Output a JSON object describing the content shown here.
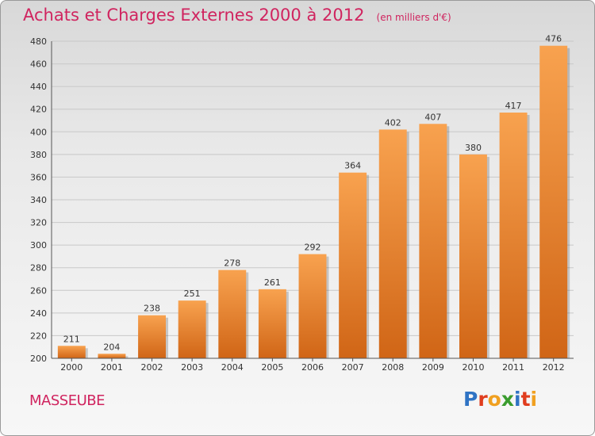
{
  "header": {
    "title": "Achats et Charges Externes 2000 à 2012",
    "unit": "(en milliers d'€)"
  },
  "footer": {
    "commune": "MASSEUBE",
    "logo_letters": [
      {
        "ch": "P",
        "color": "#2f73c4"
      },
      {
        "ch": "r",
        "color": "#e03d1e"
      },
      {
        "ch": "o",
        "color": "#f0a020"
      },
      {
        "ch": "x",
        "color": "#3a9c2e"
      },
      {
        "ch": "i",
        "color": "#2f73c4"
      },
      {
        "ch": "t",
        "color": "#e03d1e"
      },
      {
        "ch": "i",
        "color": "#f0a020"
      }
    ]
  },
  "colors": {
    "title": "#d0245f",
    "bar_top": "#f8a24f",
    "bar_bottom": "#d06516",
    "grid": "#c8c8c8",
    "text": "#333333"
  },
  "chart_data": {
    "type": "bar",
    "title": "Achats et Charges Externes 2000 à 2012",
    "categories": [
      "2000",
      "2001",
      "2002",
      "2003",
      "2004",
      "2005",
      "2006",
      "2007",
      "2008",
      "2009",
      "2010",
      "2011",
      "2012"
    ],
    "values": [
      211,
      204,
      238,
      251,
      278,
      261,
      292,
      364,
      402,
      407,
      380,
      417,
      476
    ],
    "ylim": [
      200,
      480
    ],
    "yticks": [
      200,
      220,
      240,
      260,
      280,
      300,
      320,
      340,
      360,
      380,
      400,
      420,
      440,
      460,
      480
    ],
    "grid": true,
    "xlabel": "",
    "ylabel": ""
  }
}
